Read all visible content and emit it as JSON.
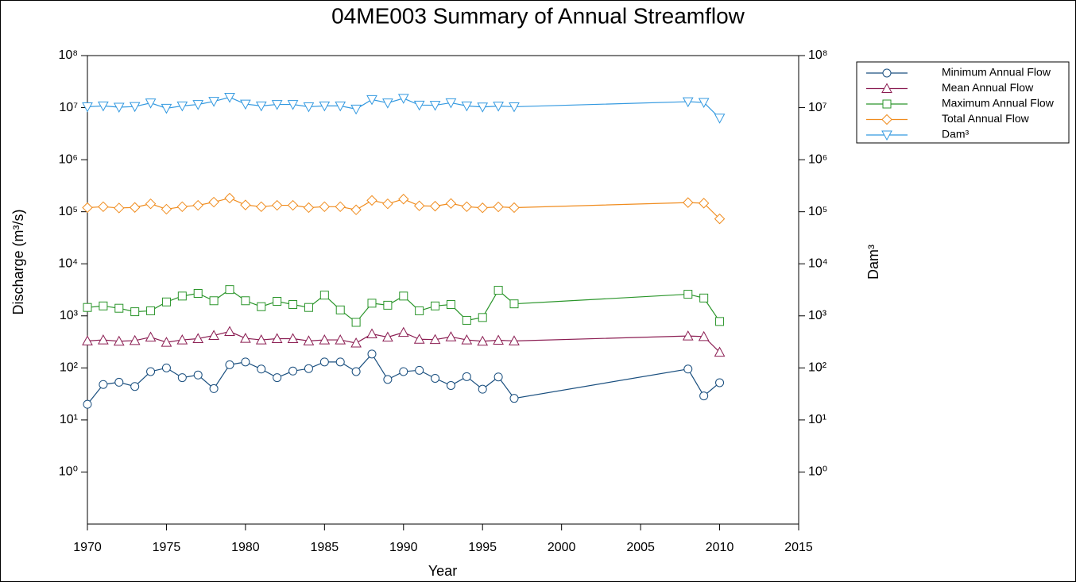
{
  "chart_data": {
    "type": "line",
    "title": "04ME003 Summary of Annual Streamflow",
    "x_label": "Year",
    "y_label": "Discharge (m³/s)",
    "y2_label": "Dam³",
    "x": [
      1970,
      1971,
      1972,
      1973,
      1974,
      1975,
      1976,
      1977,
      1978,
      1979,
      1980,
      1981,
      1982,
      1983,
      1984,
      1985,
      1986,
      1987,
      1988,
      1989,
      1990,
      1991,
      1992,
      1993,
      1994,
      1995,
      1996,
      1997,
      2008,
      2009,
      2010
    ],
    "series": [
      {
        "name": "Minimum Annual Flow",
        "color": "#1a4f7f",
        "marker": "circle",
        "values": [
          20,
          48,
          53,
          44,
          85,
          100,
          65,
          73,
          40,
          115,
          130,
          95,
          65,
          87,
          97,
          130,
          130,
          85,
          185,
          60,
          85,
          90,
          63,
          46,
          68,
          39,
          67,
          26,
          95,
          29,
          52
        ]
      },
      {
        "name": "Mean Annual Flow",
        "color": "#8b1d52",
        "marker": "triangle-up",
        "values": [
          330,
          345,
          325,
          335,
          390,
          310,
          345,
          365,
          420,
          500,
          370,
          345,
          365,
          365,
          330,
          345,
          345,
          300,
          450,
          390,
          480,
          355,
          350,
          395,
          345,
          325,
          340,
          330,
          410,
          400,
          200
        ]
      },
      {
        "name": "Maximum Annual Flow",
        "color": "#2a952a",
        "marker": "square",
        "values": [
          1450,
          1550,
          1400,
          1200,
          1250,
          1850,
          2400,
          2700,
          1950,
          3200,
          1950,
          1500,
          1900,
          1650,
          1450,
          2500,
          1300,
          750,
          1750,
          1600,
          2400,
          1250,
          1550,
          1650,
          820,
          930,
          3100,
          1700,
          2600,
          2200,
          780
        ]
      },
      {
        "name": "Total Annual Flow",
        "color": "#f08c1e",
        "marker": "diamond",
        "values": [
          120000,
          125000,
          118000,
          121000,
          142000,
          112000,
          125000,
          133000,
          153000,
          183000,
          135000,
          125000,
          133000,
          133000,
          120000,
          125000,
          125000,
          109000,
          165000,
          142000,
          175000,
          130000,
          128000,
          144000,
          125000,
          119000,
          124000,
          120000,
          150000,
          146000,
          73000
        ]
      },
      {
        "name": "Dam³",
        "color": "#3399e0",
        "marker": "triangle-down",
        "axis": "y2",
        "values": [
          10400000,
          10800000,
          10200000,
          10500000,
          12300000,
          9700000,
          10800000,
          11500000,
          13200000,
          15800000,
          11700000,
          10800000,
          11500000,
          11500000,
          10400000,
          10800000,
          10800000,
          9400000,
          14300000,
          12300000,
          15100000,
          11200000,
          11100000,
          12400000,
          10800000,
          10300000,
          10700000,
          10400000,
          13000000,
          12600000,
          6300000
        ]
      }
    ],
    "xlim": [
      1970,
      2015
    ],
    "xticks": [
      1970,
      1975,
      1980,
      1985,
      1990,
      1995,
      2000,
      2005,
      2010,
      2015
    ],
    "ylim": [
      0.1,
      100000000
    ],
    "y_scale": "log",
    "yticks": [
      {
        "value": 1,
        "label": "10⁰"
      },
      {
        "value": 10,
        "label": "10¹"
      },
      {
        "value": 100,
        "label": "10²"
      },
      {
        "value": 1000,
        "label": "10³"
      },
      {
        "value": 10000,
        "label": "10⁴"
      },
      {
        "value": 100000,
        "label": "10⁵"
      },
      {
        "value": 1000000,
        "label": "10⁶"
      },
      {
        "value": 10000000,
        "label": "10⁷"
      },
      {
        "value": 100000000,
        "label": "10⁸"
      }
    ],
    "y2lim": [
      0.1,
      100000000
    ],
    "y2ticks": [
      {
        "value": 1,
        "label": "10⁰"
      },
      {
        "value": 10,
        "label": "10¹"
      },
      {
        "value": 100,
        "label": "10²"
      },
      {
        "value": 1000,
        "label": "10³"
      },
      {
        "value": 10000,
        "label": "10⁴"
      },
      {
        "value": 100000,
        "label": "10⁵"
      },
      {
        "value": 1000000,
        "label": "10⁶"
      },
      {
        "value": 10000000,
        "label": "10⁷"
      },
      {
        "value": 100000000,
        "label": "10⁸"
      }
    ],
    "legend": "upper right",
    "grid": false
  }
}
